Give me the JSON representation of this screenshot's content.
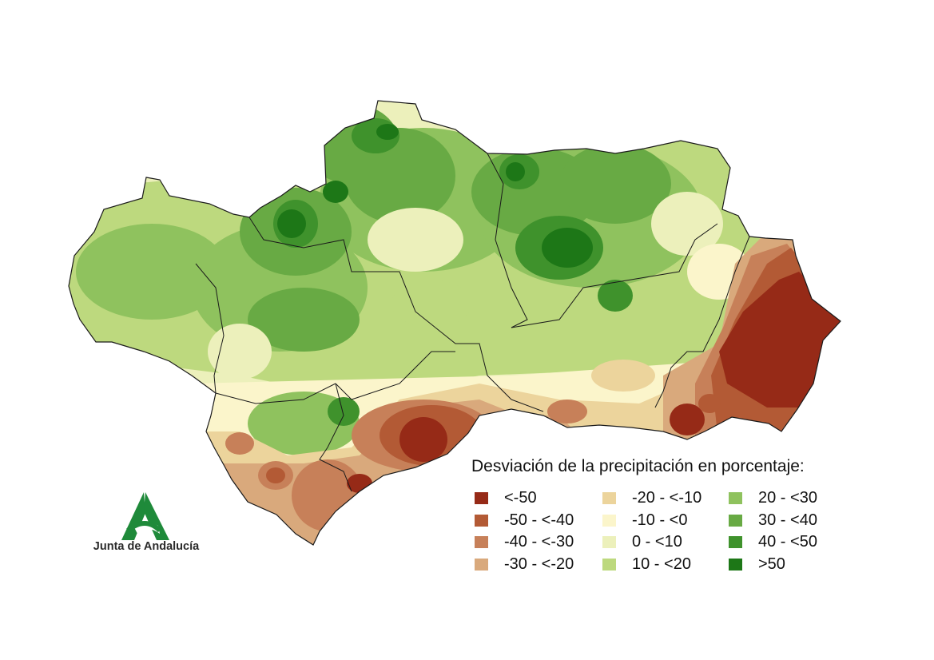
{
  "legend": {
    "title": "Desviación de la precipitación en porcentaje:",
    "items": [
      {
        "label": "<-50",
        "color": "#962a17"
      },
      {
        "label": "-50 - <-40",
        "color": "#b35a35"
      },
      {
        "label": "-40 - <-30",
        "color": "#c78059"
      },
      {
        "label": "-30 - <-20",
        "color": "#d9a97c"
      },
      {
        "label": "-20 - <-10",
        "color": "#ecd49c"
      },
      {
        "label": "-10 - <0",
        "color": "#fbf5cb"
      },
      {
        "label": "0 - <10",
        "color": "#ecf0bb"
      },
      {
        "label": "10 - <20",
        "color": "#bdd97e"
      },
      {
        "label": "20 - <30",
        "color": "#8fc25e"
      },
      {
        "label": "30 - <40",
        "color": "#68aa44"
      },
      {
        "label": "40 - <50",
        "color": "#3f922c"
      },
      {
        "label": ">50",
        "color": "#1d7717"
      }
    ]
  },
  "logo": {
    "text": "Junta de Andalucía",
    "color": "#1f8a3a",
    "icon": "junta-de-andalucia-logo-icon"
  },
  "map": {
    "region": "Andalucía",
    "outline_color": "#1a1a1a"
  }
}
